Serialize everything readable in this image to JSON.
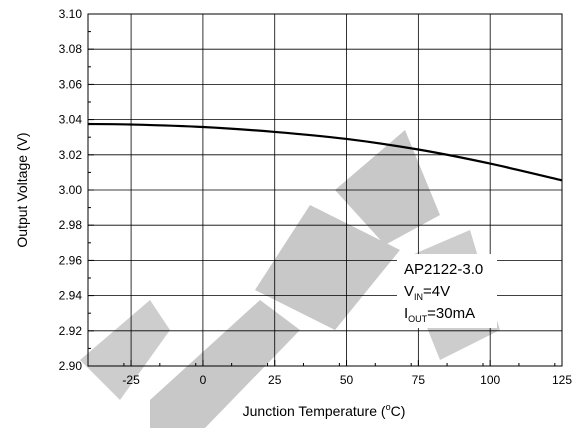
{
  "chart_data": {
    "type": "line",
    "title": "",
    "xlabel": "Junction Temperature (°C)",
    "xlabel_parts": {
      "before": "Junction Temperature (",
      "sup": "o",
      "after": "C)"
    },
    "ylabel": "Output Voltage (V)",
    "xlim": [
      -40,
      125
    ],
    "ylim": [
      2.9,
      3.1
    ],
    "x_ticks": [
      -25,
      0,
      25,
      50,
      75,
      100,
      125
    ],
    "x_tick_labels": [
      "-25",
      "0",
      "25",
      "50",
      "75",
      "100",
      "125"
    ],
    "y_ticks": [
      2.9,
      2.92,
      2.94,
      2.96,
      2.98,
      3.0,
      3.02,
      3.04,
      3.06,
      3.08,
      3.1
    ],
    "y_tick_labels": [
      "2.90",
      "2.92",
      "2.94",
      "2.96",
      "2.98",
      "3.00",
      "3.02",
      "3.04",
      "3.06",
      "3.08",
      "3.10"
    ],
    "grid": true,
    "series": [
      {
        "x": [
          -40,
          -25,
          0,
          25,
          50,
          75,
          100,
          125
        ],
        "values": [
          3.0375,
          3.0372,
          3.0358,
          3.033,
          3.029,
          3.023,
          3.015,
          3.0055
        ]
      }
    ],
    "annotation": {
      "part": "AP2122-3.0",
      "vin": {
        "base": "V",
        "sub": "IN",
        "value": "=4V"
      },
      "iout": {
        "base": "I",
        "sub": "OUT",
        "value": "=30mA"
      }
    },
    "colors": {
      "line": "#000000",
      "grid": "#000000",
      "watermark": "#c8c8c8"
    }
  }
}
